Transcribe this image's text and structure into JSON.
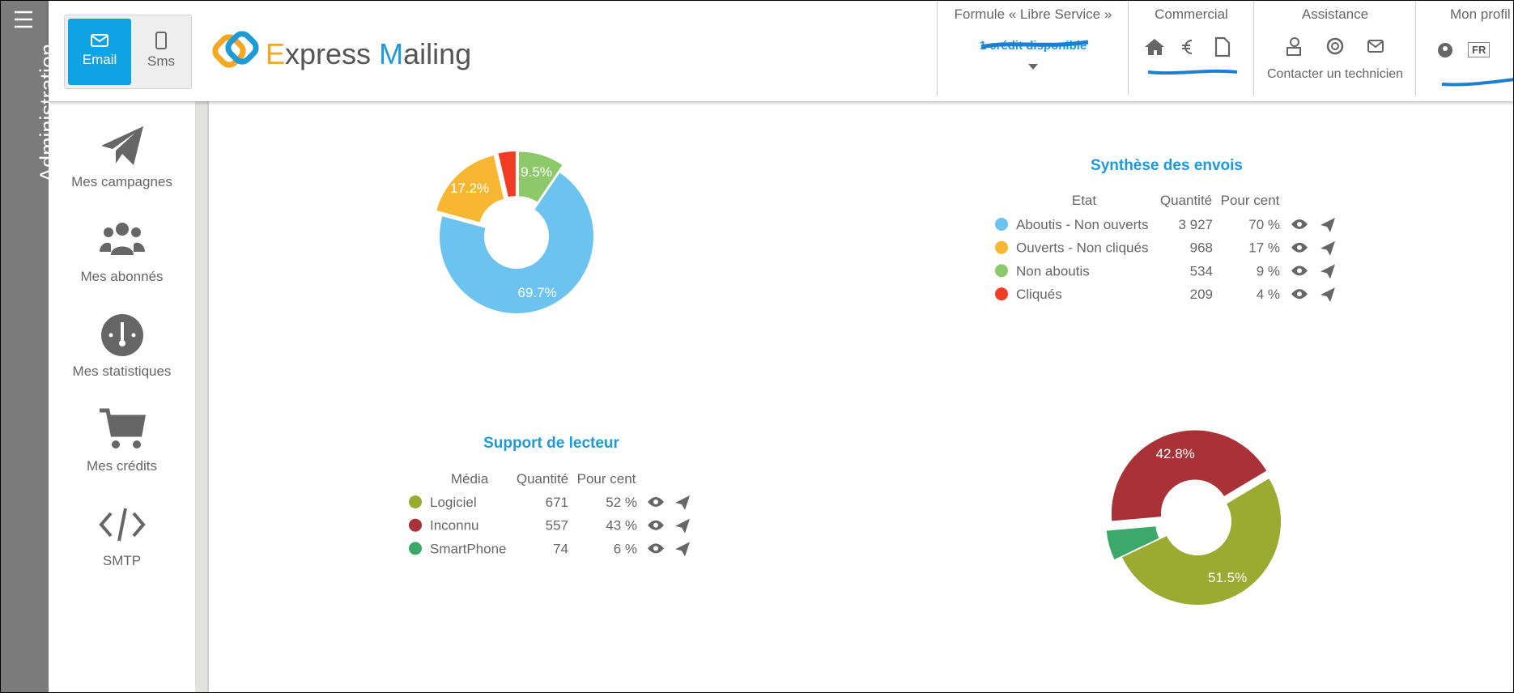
{
  "sidebar": {
    "title": "Administration"
  },
  "header": {
    "tabs": [
      "Email",
      "Sms"
    ],
    "logo": [
      "E",
      "xpress ",
      "M",
      "ailing"
    ],
    "sections": [
      {
        "title": "Formule « Libre Service »",
        "line": "1 crédit disponible"
      },
      {
        "title": "Commercial"
      },
      {
        "title": "Assistance",
        "line": "Contacter un technicien"
      },
      {
        "title": "Mon profil",
        "lang": "FR"
      }
    ]
  },
  "nav": [
    "Mes campagnes",
    "Mes abonnés",
    "Mes statistiques",
    "Mes crédits",
    "SMTP"
  ],
  "chart_data": [
    {
      "type": "pie",
      "title": "Synthèse des envois",
      "categories": [
        "Aboutis - Non ouverts",
        "Ouverts - Non cliqués",
        "Non aboutis",
        "Cliqués"
      ],
      "values": [
        69.7,
        17.2,
        9.5,
        3.6
      ],
      "value_labels": [
        "69.7%",
        "17.2%",
        "9.5%",
        null
      ],
      "colors": [
        "#6cc3f0",
        "#f7b733",
        "#8dc96a",
        "#f03c24"
      ],
      "table": {
        "columns": [
          "Etat",
          "Quantité",
          "Pour cent"
        ],
        "rows": [
          [
            "3 927",
            "70 %"
          ],
          [
            "968",
            "17 %"
          ],
          [
            "534",
            "9 %"
          ],
          [
            "209",
            "4 %"
          ]
        ]
      }
    },
    {
      "type": "pie",
      "title": "Support de lecteur",
      "categories": [
        "Logiciel",
        "Inconnu",
        "SmartPhone"
      ],
      "values": [
        51.5,
        42.8,
        5.7
      ],
      "value_labels": [
        "51.5%",
        "42.8%",
        null
      ],
      "colors": [
        "#9aab32",
        "#a83238",
        "#3ca86a"
      ],
      "table": {
        "columns": [
          "Média",
          "Quantité",
          "Pour cent"
        ],
        "rows": [
          [
            "671",
            "52 %"
          ],
          [
            "557",
            "43 %"
          ],
          [
            "74",
            "6 %"
          ]
        ]
      }
    }
  ]
}
